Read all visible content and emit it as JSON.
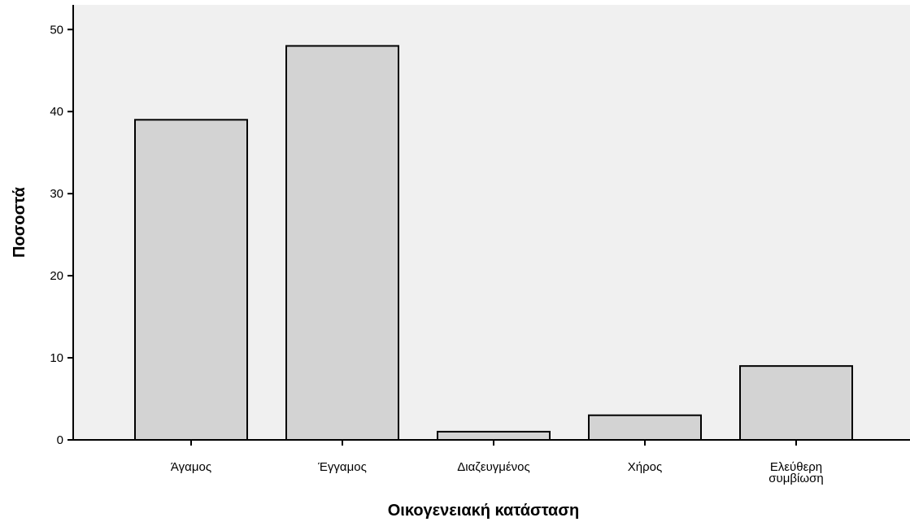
{
  "chart_data": {
    "type": "bar",
    "categories": [
      "Άγαμος",
      "Έγγαμος",
      "Διαζευγμένος",
      "Χήρος",
      "Ελεύθερη συμβίωση"
    ],
    "category_lines": [
      [
        "Άγαμος"
      ],
      [
        "Έγγαμος"
      ],
      [
        "Διαζευγμένος"
      ],
      [
        "Χήρος"
      ],
      [
        "Ελεύθερη",
        "συμβίωση"
      ]
    ],
    "values": [
      39,
      48,
      1,
      3,
      9
    ],
    "xlabel": "Οικογενειακή κατάσταση",
    "ylabel": "Ποσοστά",
    "ylim": [
      0,
      53
    ],
    "yticks": [
      0,
      10,
      20,
      30,
      40,
      50
    ],
    "ytick_labels": [
      "0",
      "10",
      "20",
      "30",
      "40",
      "50"
    ],
    "grid": false,
    "colors": {
      "plot_background": "#f0f0f0",
      "bar_fill": "#d3d3d3",
      "bar_stroke": "#000000",
      "axis": "#000000"
    }
  }
}
